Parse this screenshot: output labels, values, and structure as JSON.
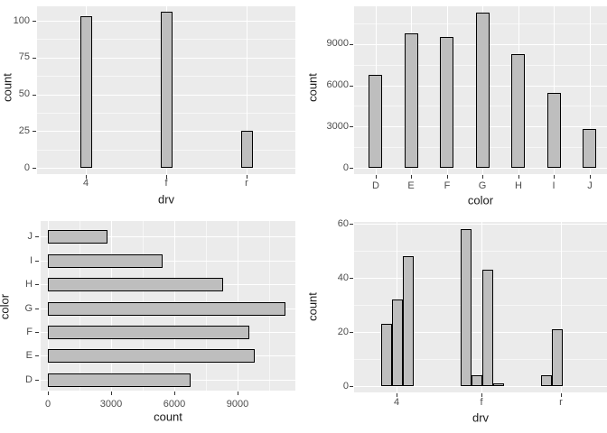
{
  "style": {
    "page_bg": "#FFFFFF",
    "panel_bg": "#EBEBEB",
    "grid_major": "#FFFFFF",
    "grid_minor": "rgba(255,255,255,0.6)",
    "bar_fill": "#BEBEBE",
    "bar_border": "#000000",
    "tick_text": "#4D4D4D",
    "title_text": "#1A1A1A"
  },
  "chart_data": [
    {
      "type": "bar",
      "orientation": "vertical",
      "title": "",
      "xlabel": "drv",
      "ylabel": "count",
      "categories": [
        "4",
        "f",
        "r"
      ],
      "values": [
        103,
        106,
        25
      ],
      "yticks": [
        0,
        25,
        50,
        75,
        100
      ],
      "ytick_labels": [
        "0",
        "25",
        "50",
        "75",
        "100"
      ],
      "minor_gridlines": [
        12.5,
        37.5,
        62.5,
        87.5
      ],
      "ylim": [
        0,
        112
      ],
      "grid": true,
      "legend": "none"
    },
    {
      "type": "bar",
      "orientation": "vertical",
      "title": "",
      "xlabel": "color",
      "ylabel": "count",
      "categories": [
        "D",
        "E",
        "F",
        "G",
        "H",
        "I",
        "J"
      ],
      "values": [
        6775,
        9797,
        9542,
        11292,
        8304,
        5422,
        2808
      ],
      "yticks": [
        0,
        3000,
        6000,
        9000
      ],
      "ytick_labels": [
        "0",
        "3000",
        "6000",
        "9000"
      ],
      "minor_gridlines": [
        1500,
        4500,
        7500,
        10500
      ],
      "ylim": [
        0,
        11900
      ],
      "grid": true,
      "legend": "none"
    },
    {
      "type": "bar",
      "orientation": "horizontal",
      "title": "",
      "xlabel": "count",
      "ylabel": "color",
      "categories": [
        "J",
        "I",
        "H",
        "G",
        "F",
        "E",
        "D"
      ],
      "values": [
        2808,
        5422,
        8304,
        11292,
        9542,
        9797,
        6775
      ],
      "xticks": [
        0,
        3000,
        6000,
        9000
      ],
      "xtick_labels": [
        "0",
        "3000",
        "6000",
        "9000"
      ],
      "minor_gridlines": [
        1500,
        4500,
        7500,
        10500
      ],
      "xlim": [
        0,
        11900
      ],
      "grid": true,
      "legend": "none"
    },
    {
      "type": "bar",
      "orientation": "vertical",
      "grouped": "dodge",
      "title": "",
      "xlabel": "drv",
      "ylabel": "count",
      "categories": [
        "4",
        "f",
        "r"
      ],
      "group_values": [
        [
          23,
          32,
          48
        ],
        [
          58,
          4,
          43,
          1
        ],
        [
          4,
          21
        ]
      ],
      "yticks": [
        0,
        20,
        40,
        60
      ],
      "ytick_labels": [
        "0",
        "20",
        "40",
        "60"
      ],
      "minor_gridlines": [
        10,
        30,
        50
      ],
      "ylim": [
        0,
        61
      ],
      "grid": true,
      "legend": "none"
    }
  ]
}
